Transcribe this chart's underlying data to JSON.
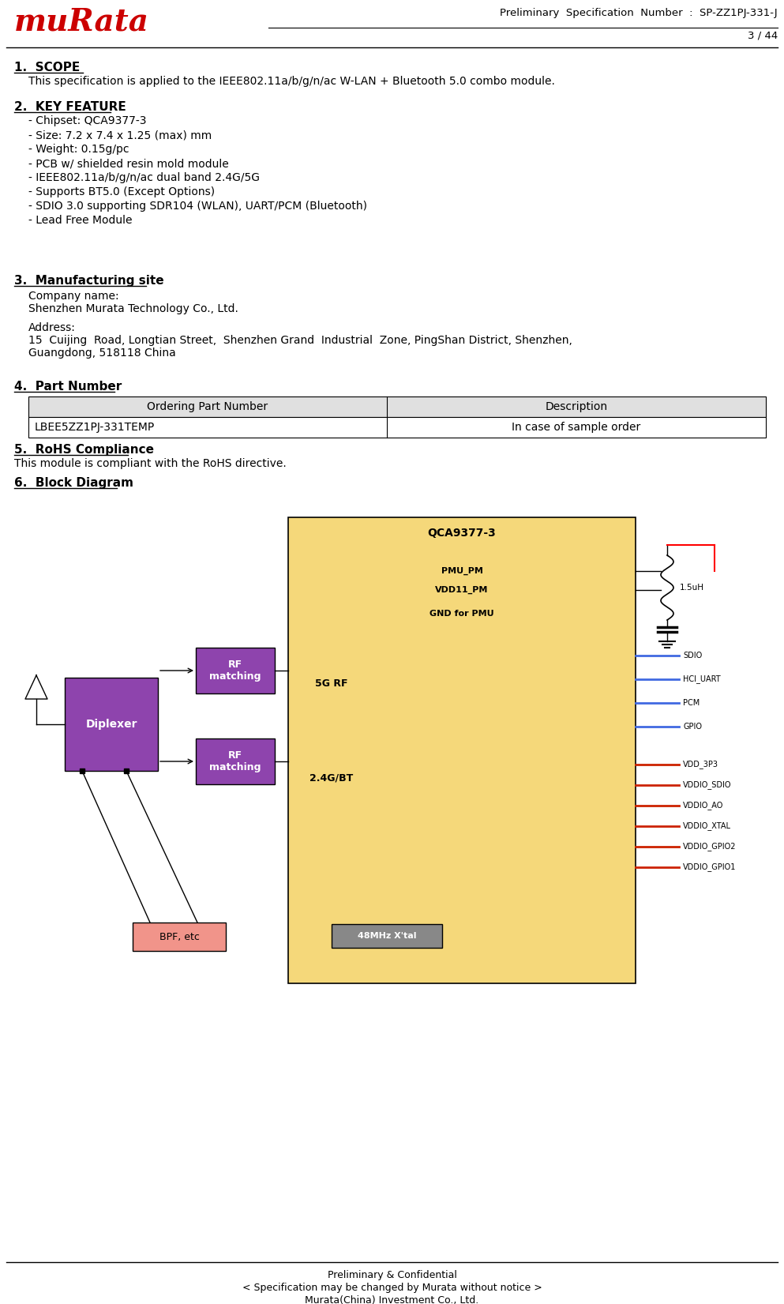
{
  "title_line1": "Preliminary  Specification  Number  :  SP-ZZ1PJ-331-J",
  "title_line2": "3 / 44",
  "footer_line1": "Preliminary & Confidential",
  "footer_line2": "< Specification may be changed by Murata without notice >",
  "footer_line3": "Murata(China) Investment Co., Ltd.",
  "section1_heading": "1.  SCOPE",
  "section1_text": "This specification is applied to the IEEE802.11a/b/g/n/ac W-LAN + Bluetooth 5.0 combo module.",
  "section2_heading": "2.  KEY FEATURE",
  "section2_items": [
    "- Chipset: QCA9377-3",
    "- Size: 7.2 x 7.4 x 1.25 (max) mm",
    "- Weight: 0.15g/pc",
    "- PCB w/ shielded resin mold module",
    "- IEEE802.11a/b/g/n/ac dual band 2.4G/5G",
    "- Supports BT5.0 (Except Options)",
    "- SDIO 3.0 supporting SDR104 (WLAN), UART/PCM (Bluetooth)",
    "- Lead Free Module"
  ],
  "section3_heading": "3.  Manufacturing site",
  "section3_company_label": "Company name:",
  "section3_company": "Shenzhen Murata Technology Co., Ltd.",
  "section3_address_label": "Address:",
  "section3_address_line1": "15  Cuijing  Road, Longtian Street,  Shenzhen Grand  Industrial  Zone, PingShan District, Shenzhen,",
  "section3_address_line2": "Guangdong, 518118 China",
  "section4_heading": "4.  Part Number",
  "table_header": [
    "Ordering Part Number",
    "Description"
  ],
  "table_row": [
    "LBEE5ZZ1PJ-331TEMP",
    "In case of sample order"
  ],
  "section5_heading": "5.  RoHS Compliance",
  "section5_text": "This module is compliant with the RoHS directive.",
  "section6_heading": "6.  Block Diagram",
  "bg_color": "#ffffff",
  "text_color": "#000000",
  "table_header_bg": "#e0e0e0",
  "logo_color": "#cc0000",
  "chip_bg": "#f5d87a",
  "diplexer_bg": "#8e44ad",
  "rf_match_bg": "#8e44ad",
  "bpf_bg": "#f1948a",
  "xtal_bg": "#888888",
  "chip_label": "QCA9377-3",
  "chip_labels_inside": [
    "PMU_PM",
    "VDD11_PM",
    "GND for PMU"
  ],
  "rf_label1": "5G RF",
  "rf_label2": "2.4G/BT",
  "xtal_label": "48MHz X'tal",
  "inductor_label": "1.5uH",
  "pin_labels_blue": [
    "SDIO",
    "HCI_UART",
    "PCM",
    "GPIO"
  ],
  "pin_labels_red": [
    "VDD_3P3",
    "VDDIO_SDIO",
    "VDDIO_AO",
    "VDDIO_XTAL",
    "VDDIO_GPIO2",
    "VDDIO_GPIO1"
  ],
  "blue_line_color": "#4169e1",
  "red_line_color": "#cc2200"
}
